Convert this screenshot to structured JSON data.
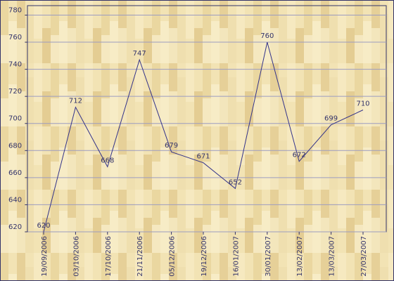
{
  "chart_data": {
    "type": "line",
    "categories": [
      "19/09/2006",
      "03/10/2006",
      "17/10/2006",
      "21/11/2006",
      "05/12/2006",
      "19/12/2006",
      "16/01/2007",
      "30/01/2007",
      "13/02/2007",
      "13/03/2007",
      "27/03/2007"
    ],
    "series": [
      {
        "name": null,
        "color": "#33338a",
        "values": [
          620,
          712,
          668,
          747,
          679,
          671,
          652,
          760,
          672,
          699,
          710
        ]
      }
    ],
    "ylim": [
      620,
      787
    ],
    "yticks": [
      620,
      640,
      660,
      680,
      700,
      720,
      740,
      760,
      780
    ],
    "grid": true
  }
}
